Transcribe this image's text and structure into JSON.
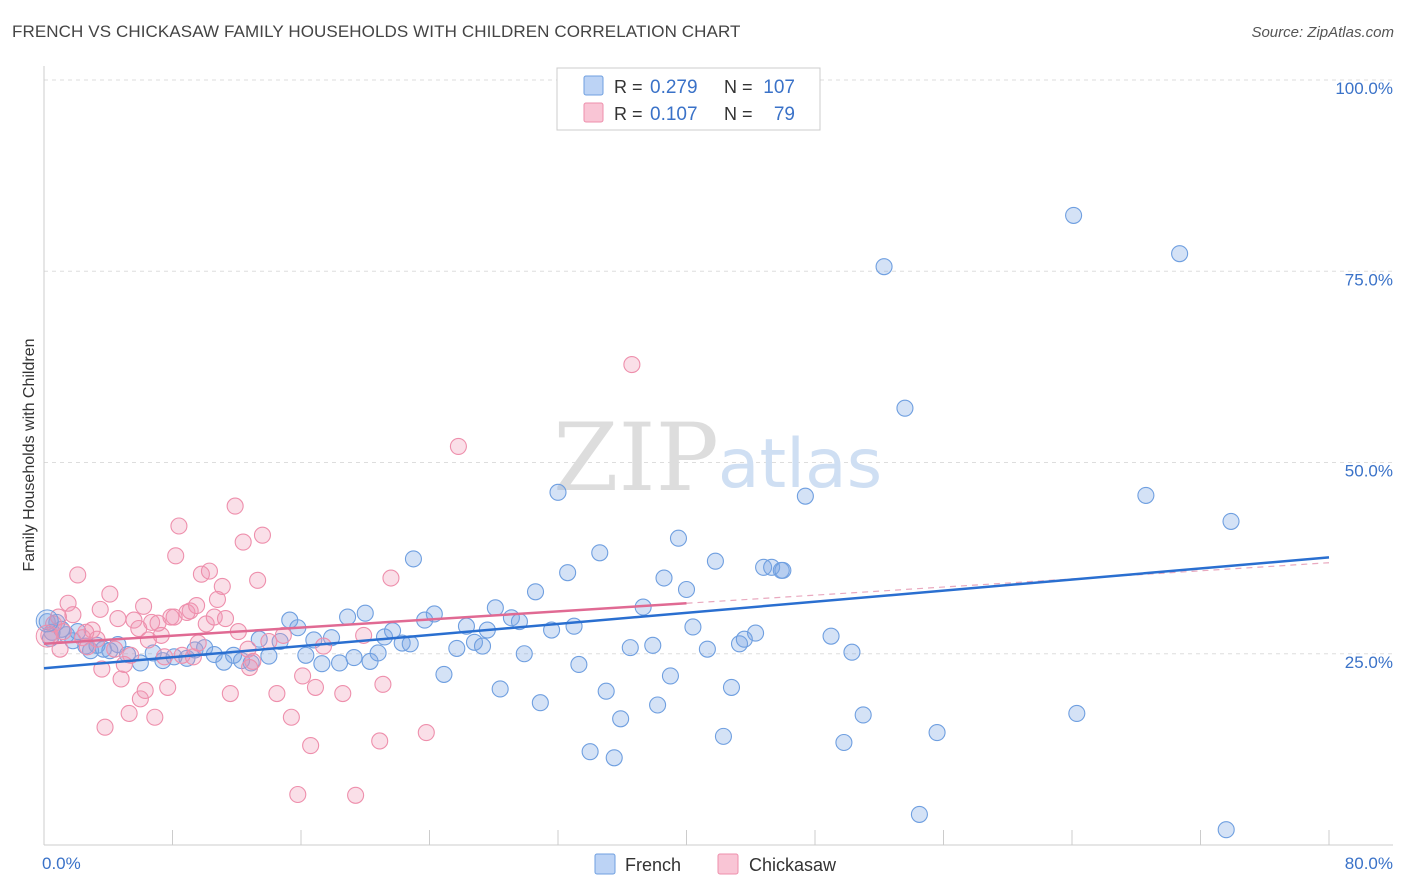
{
  "header": {
    "title": "FRENCH VS CHICKASAW FAMILY HOUSEHOLDS WITH CHILDREN CORRELATION CHART",
    "source": "Source: ZipAtlas.com"
  },
  "watermark": {
    "zip": "ZIP",
    "atlas": "atlas"
  },
  "chart_data": {
    "type": "scatter",
    "title": "FRENCH VS CHICKASAW FAMILY HOUSEHOLDS WITH CHILDREN CORRELATION CHART",
    "xlabel": "",
    "ylabel": "Family Households with Children",
    "xlim": [
      0,
      80
    ],
    "ylim": [
      0,
      100
    ],
    "x_tick_labels": [
      "0.0%",
      "80.0%"
    ],
    "y_ticks": [
      25,
      50,
      75,
      100
    ],
    "y_tick_labels": [
      "25.0%",
      "50.0%",
      "75.0%",
      "100.0%"
    ],
    "grid": true,
    "legend_position": "top-center",
    "stats": [
      {
        "name": "French",
        "r_label": "R =",
        "r_value": "0.279",
        "n_label": "N =",
        "n_value": "107"
      },
      {
        "name": "Chickasaw",
        "r_label": "R =",
        "r_value": "0.107",
        "n_label": "N =",
        "n_value": "79"
      }
    ],
    "series": [
      {
        "name": "French",
        "color": "#6f9fe0",
        "line_color": "#2a6fd0",
        "trend": {
          "x": [
            0,
            80
          ],
          "y": [
            23.1,
            37.6
          ]
        },
        "points": [
          [
            0.2,
            29.2
          ],
          [
            0.5,
            27.8
          ],
          [
            0.8,
            29.1
          ],
          [
            1.1,
            28.2
          ],
          [
            1.4,
            27.5
          ],
          [
            1.8,
            26.7
          ],
          [
            2.1,
            27.9
          ],
          [
            2.6,
            26.0
          ],
          [
            2.9,
            25.4
          ],
          [
            3.3,
            26.1
          ],
          [
            3.7,
            25.6
          ],
          [
            4.1,
            25.4
          ],
          [
            4.6,
            26.2
          ],
          [
            5.2,
            24.9
          ],
          [
            6.0,
            23.8
          ],
          [
            6.8,
            25.1
          ],
          [
            7.4,
            24.1
          ],
          [
            8.1,
            24.6
          ],
          [
            8.9,
            24.4
          ],
          [
            9.4,
            25.5
          ],
          [
            10.0,
            25.8
          ],
          [
            10.6,
            24.9
          ],
          [
            11.2,
            23.9
          ],
          [
            11.8,
            24.8
          ],
          [
            12.3,
            24.1
          ],
          [
            12.9,
            23.8
          ],
          [
            13.4,
            26.9
          ],
          [
            14.0,
            24.7
          ],
          [
            14.7,
            26.6
          ],
          [
            15.3,
            29.4
          ],
          [
            15.8,
            28.4
          ],
          [
            16.3,
            24.8
          ],
          [
            16.8,
            26.8
          ],
          [
            17.3,
            23.7
          ],
          [
            17.9,
            27.1
          ],
          [
            18.4,
            23.8
          ],
          [
            18.9,
            29.8
          ],
          [
            19.3,
            24.5
          ],
          [
            20.0,
            30.3
          ],
          [
            20.3,
            24.0
          ],
          [
            20.8,
            25.1
          ],
          [
            21.2,
            27.2
          ],
          [
            21.7,
            28.0
          ],
          [
            22.3,
            26.4
          ],
          [
            22.8,
            26.3
          ],
          [
            23.0,
            37.4
          ],
          [
            23.7,
            29.4
          ],
          [
            24.3,
            30.2
          ],
          [
            24.9,
            22.3
          ],
          [
            25.7,
            25.7
          ],
          [
            26.3,
            28.6
          ],
          [
            26.8,
            26.5
          ],
          [
            27.3,
            26.0
          ],
          [
            27.6,
            28.1
          ],
          [
            28.1,
            31.0
          ],
          [
            28.4,
            20.4
          ],
          [
            29.1,
            29.7
          ],
          [
            29.6,
            29.2
          ],
          [
            29.9,
            25.0
          ],
          [
            30.6,
            33.1
          ],
          [
            30.9,
            18.6
          ],
          [
            31.6,
            28.1
          ],
          [
            32.0,
            46.1
          ],
          [
            32.6,
            35.6
          ],
          [
            33.0,
            28.6
          ],
          [
            33.3,
            23.6
          ],
          [
            34.0,
            12.2
          ],
          [
            34.6,
            38.2
          ],
          [
            35.0,
            20.1
          ],
          [
            35.5,
            11.4
          ],
          [
            35.9,
            16.5
          ],
          [
            36.5,
            25.8
          ],
          [
            37.3,
            31.1
          ],
          [
            37.9,
            26.1
          ],
          [
            38.2,
            18.3
          ],
          [
            38.6,
            34.9
          ],
          [
            39.0,
            22.1
          ],
          [
            39.5,
            40.1
          ],
          [
            40.0,
            33.4
          ],
          [
            40.4,
            28.5
          ],
          [
            41.3,
            25.6
          ],
          [
            41.8,
            37.1
          ],
          [
            42.3,
            14.2
          ],
          [
            42.8,
            20.6
          ],
          [
            43.3,
            26.3
          ],
          [
            43.6,
            26.9
          ],
          [
            44.3,
            27.7
          ],
          [
            44.8,
            36.3
          ],
          [
            45.3,
            36.3
          ],
          [
            45.9,
            35.9
          ],
          [
            46.0,
            35.9
          ],
          [
            47.4,
            45.6
          ],
          [
            49.0,
            27.3
          ],
          [
            49.8,
            13.4
          ],
          [
            50.3,
            25.2
          ],
          [
            51.0,
            17.0
          ],
          [
            52.3,
            75.6
          ],
          [
            53.6,
            57.1
          ],
          [
            54.5,
            4.0
          ],
          [
            55.6,
            14.7
          ],
          [
            64.1,
            82.3
          ],
          [
            64.3,
            17.2
          ],
          [
            68.6,
            45.7
          ],
          [
            70.7,
            77.3
          ],
          [
            73.6,
            2.0
          ],
          [
            73.9,
            42.3
          ],
          [
            0.4,
            27.0
          ]
        ]
      },
      {
        "name": "Chickasaw",
        "color": "#ee8fac",
        "line_color": "#e06a93",
        "trend": {
          "x": [
            0,
            40
          ],
          "y": [
            26.3,
            31.6
          ]
        },
        "points": [
          [
            0.3,
            27.4
          ],
          [
            0.6,
            28.9
          ],
          [
            0.9,
            29.8
          ],
          [
            1.2,
            27.9
          ],
          [
            1.5,
            31.6
          ],
          [
            1.8,
            30.1
          ],
          [
            2.1,
            35.3
          ],
          [
            2.4,
            27.1
          ],
          [
            2.7,
            25.9
          ],
          [
            3.0,
            28.1
          ],
          [
            3.3,
            26.9
          ],
          [
            3.5,
            30.8
          ],
          [
            3.6,
            23.0
          ],
          [
            3.8,
            15.4
          ],
          [
            4.1,
            32.8
          ],
          [
            4.4,
            25.6
          ],
          [
            4.6,
            29.6
          ],
          [
            4.8,
            21.7
          ],
          [
            5.0,
            23.6
          ],
          [
            5.3,
            17.2
          ],
          [
            5.6,
            29.4
          ],
          [
            5.9,
            28.3
          ],
          [
            6.0,
            19.1
          ],
          [
            6.3,
            20.2
          ],
          [
            6.5,
            26.8
          ],
          [
            6.7,
            29.1
          ],
          [
            6.9,
            16.7
          ],
          [
            7.1,
            29.0
          ],
          [
            7.3,
            27.4
          ],
          [
            7.5,
            24.6
          ],
          [
            7.7,
            20.6
          ],
          [
            7.9,
            29.8
          ],
          [
            8.1,
            29.8
          ],
          [
            8.2,
            37.8
          ],
          [
            8.4,
            41.7
          ],
          [
            8.6,
            24.8
          ],
          [
            8.9,
            30.4
          ],
          [
            9.1,
            30.6
          ],
          [
            9.3,
            24.6
          ],
          [
            9.5,
            31.3
          ],
          [
            9.8,
            35.4
          ],
          [
            10.1,
            28.9
          ],
          [
            10.3,
            35.8
          ],
          [
            10.6,
            29.8
          ],
          [
            10.8,
            32.1
          ],
          [
            11.1,
            33.8
          ],
          [
            11.3,
            29.6
          ],
          [
            11.6,
            19.8
          ],
          [
            11.9,
            44.3
          ],
          [
            12.1,
            27.9
          ],
          [
            12.4,
            39.6
          ],
          [
            12.7,
            25.6
          ],
          [
            13.0,
            24.0
          ],
          [
            13.3,
            34.6
          ],
          [
            13.6,
            40.5
          ],
          [
            14.0,
            26.6
          ],
          [
            14.5,
            19.8
          ],
          [
            14.9,
            27.4
          ],
          [
            15.4,
            16.7
          ],
          [
            15.8,
            6.6
          ],
          [
            16.1,
            22.1
          ],
          [
            16.6,
            13.0
          ],
          [
            16.9,
            20.6
          ],
          [
            18.6,
            19.8
          ],
          [
            19.4,
            6.5
          ],
          [
            19.9,
            27.4
          ],
          [
            20.9,
            13.6
          ],
          [
            21.1,
            21.0
          ],
          [
            21.6,
            34.9
          ],
          [
            23.8,
            14.7
          ],
          [
            25.8,
            52.1
          ],
          [
            36.6,
            62.8
          ],
          [
            6.2,
            31.2
          ],
          [
            1.0,
            25.6
          ],
          [
            2.6,
            27.8
          ],
          [
            5.4,
            24.8
          ],
          [
            9.6,
            26.4
          ],
          [
            12.8,
            23.2
          ],
          [
            17.4,
            26.0
          ]
        ]
      }
    ]
  }
}
